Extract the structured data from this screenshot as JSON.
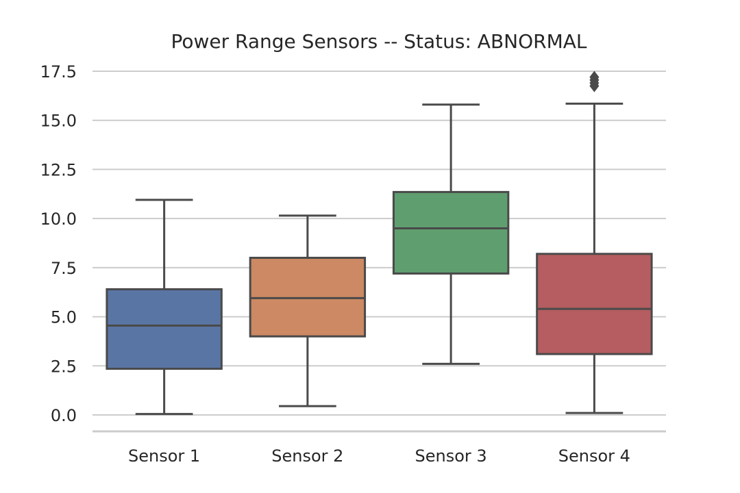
{
  "chart_data": {
    "type": "box",
    "title": "Power Range Sensors -- Status: ABNORMAL",
    "xlabel": "",
    "ylabel": "",
    "ylim": [
      -0.9,
      17.5
    ],
    "yticks": [
      0.0,
      2.5,
      5.0,
      7.5,
      10.0,
      12.5,
      15.0,
      17.5
    ],
    "ytick_labels": [
      "0.0",
      "2.5",
      "5.0",
      "7.5",
      "10.0",
      "12.5",
      "15.0",
      "17.5"
    ],
    "categories": [
      "Sensor 1",
      "Sensor 2",
      "Sensor 3",
      "Sensor 4"
    ],
    "grid": "horizontal",
    "series": [
      {
        "category": "Sensor 1",
        "whisker_low": 0.05,
        "q1": 2.35,
        "median": 4.55,
        "q3": 6.4,
        "whisker_high": 10.95,
        "outliers": [],
        "color": "#5975a4"
      },
      {
        "category": "Sensor 2",
        "whisker_low": 0.45,
        "q1": 4.0,
        "median": 5.95,
        "q3": 8.0,
        "whisker_high": 10.15,
        "outliers": [],
        "color": "#cc8963"
      },
      {
        "category": "Sensor 3",
        "whisker_low": 2.6,
        "q1": 7.2,
        "median": 9.5,
        "q3": 11.35,
        "whisker_high": 15.8,
        "outliers": [],
        "color": "#5f9e6e"
      },
      {
        "category": "Sensor 4",
        "whisker_low": 0.1,
        "q1": 3.1,
        "median": 5.4,
        "q3": 8.2,
        "whisker_high": 15.85,
        "outliers": [
          16.75,
          16.9,
          17.05,
          17.2
        ],
        "color": "#b55d60"
      }
    ]
  }
}
